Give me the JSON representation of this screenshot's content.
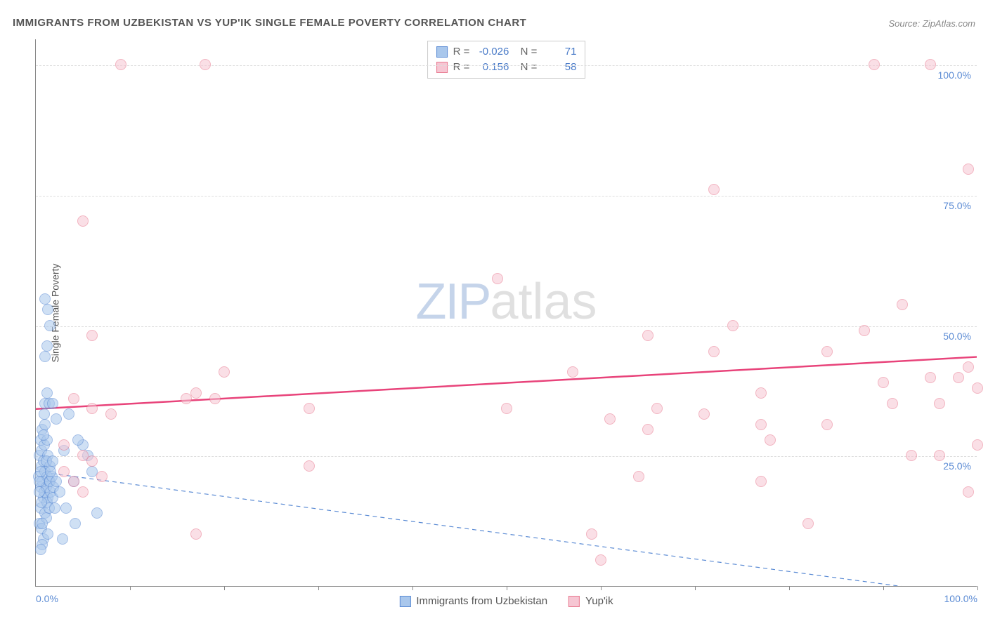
{
  "title": "IMMIGRANTS FROM UZBEKISTAN VS YUP'IK SINGLE FEMALE POVERTY CORRELATION CHART",
  "source_label": "Source: ZipAtlas.com",
  "ylabel": "Single Female Poverty",
  "watermark": {
    "part1": "ZIP",
    "part2": "atlas"
  },
  "chart": {
    "type": "scatter",
    "xlim": [
      0,
      100
    ],
    "ylim": [
      0,
      105
    ],
    "xticks_labels": [
      {
        "pos": 0,
        "label": "0.0%"
      },
      {
        "pos": 100,
        "label": "100.0%"
      }
    ],
    "xticks_minor": [
      10,
      20,
      30,
      40,
      50,
      60,
      70,
      80,
      90,
      100
    ],
    "yticks": [
      {
        "pos": 25,
        "label": "25.0%"
      },
      {
        "pos": 50,
        "label": "50.0%"
      },
      {
        "pos": 75,
        "label": "75.0%"
      },
      {
        "pos": 100,
        "label": "100.0%"
      }
    ],
    "background_color": "#ffffff",
    "grid_color": "#dddddd",
    "series": [
      {
        "name": "Immigrants from Uzbekistan",
        "fill": "#a9c7ec",
        "stroke": "#5b8bd4",
        "fill_opacity": 0.55,
        "r_value": "-0.026",
        "n_value": "71",
        "trend": {
          "x1": 0,
          "y1": 22,
          "x2": 100,
          "y2": -2,
          "dash": "6,5",
          "width": 1.2,
          "color": "#5b8bd4"
        },
        "points": [
          [
            0.3,
            21
          ],
          [
            0.5,
            19
          ],
          [
            0.6,
            23
          ],
          [
            0.8,
            17
          ],
          [
            0.4,
            25
          ],
          [
            0.7,
            20
          ],
          [
            1.0,
            22
          ],
          [
            0.5,
            15
          ],
          [
            0.9,
            18
          ],
          [
            1.2,
            21
          ],
          [
            0.6,
            26
          ],
          [
            1.1,
            19
          ],
          [
            0.4,
            12
          ],
          [
            0.8,
            24
          ],
          [
            1.3,
            17
          ],
          [
            0.5,
            28
          ],
          [
            1.0,
            14
          ],
          [
            1.4,
            20
          ],
          [
            0.7,
            30
          ],
          [
            1.2,
            16
          ],
          [
            0.6,
            11
          ],
          [
            1.5,
            23
          ],
          [
            0.9,
            27
          ],
          [
            1.1,
            13
          ],
          [
            0.4,
            20
          ],
          [
            1.3,
            25
          ],
          [
            0.8,
            9
          ],
          [
            1.6,
            18
          ],
          [
            1.0,
            31
          ],
          [
            1.4,
            15
          ],
          [
            0.5,
            22
          ],
          [
            1.2,
            28
          ],
          [
            0.7,
            12
          ],
          [
            1.5,
            20
          ],
          [
            0.9,
            33
          ],
          [
            1.8,
            17
          ],
          [
            1.1,
            24
          ],
          [
            0.6,
            16
          ],
          [
            1.7,
            21
          ],
          [
            0.8,
            29
          ],
          [
            1.3,
            10
          ],
          [
            1.9,
            19
          ],
          [
            1.0,
            35
          ],
          [
            0.4,
            18
          ],
          [
            1.6,
            22
          ],
          [
            2.0,
            15
          ],
          [
            1.2,
            37
          ],
          [
            0.7,
            8
          ],
          [
            2.2,
            20
          ],
          [
            1.4,
            35
          ],
          [
            0.5,
            7
          ],
          [
            1.8,
            24
          ],
          [
            2.5,
            18
          ],
          [
            3.0,
            26
          ],
          [
            4.0,
            20
          ],
          [
            5.0,
            27
          ],
          [
            3.5,
            33
          ],
          [
            6.0,
            22
          ],
          [
            4.5,
            28
          ],
          [
            1.0,
            44
          ],
          [
            1.2,
            46
          ],
          [
            1.5,
            50
          ],
          [
            1.3,
            53
          ],
          [
            1.0,
            55
          ],
          [
            1.8,
            35
          ],
          [
            2.2,
            32
          ],
          [
            5.5,
            25
          ],
          [
            4.2,
            12
          ],
          [
            3.2,
            15
          ],
          [
            2.8,
            9
          ],
          [
            6.5,
            14
          ]
        ]
      },
      {
        "name": "Yup'ik",
        "fill": "#f6c6d3",
        "stroke": "#e8788f",
        "fill_opacity": 0.55,
        "r_value": "0.156",
        "n_value": "58",
        "trend": {
          "x1": 0,
          "y1": 34,
          "x2": 100,
          "y2": 44,
          "dash": "none",
          "width": 2.5,
          "color": "#e8437a"
        },
        "points": [
          [
            3,
            27
          ],
          [
            4,
            36
          ],
          [
            9,
            100
          ],
          [
            6,
            34
          ],
          [
            5,
            25
          ],
          [
            8,
            33
          ],
          [
            6,
            48
          ],
          [
            5,
            70
          ],
          [
            18,
            100
          ],
          [
            19,
            36
          ],
          [
            20,
            41
          ],
          [
            17,
            37
          ],
          [
            17,
            10
          ],
          [
            16,
            36
          ],
          [
            29,
            23
          ],
          [
            29,
            34
          ],
          [
            49,
            59
          ],
          [
            50,
            34
          ],
          [
            57,
            41
          ],
          [
            59,
            10
          ],
          [
            61,
            32
          ],
          [
            60,
            5
          ],
          [
            64,
            21
          ],
          [
            65,
            30
          ],
          [
            66,
            34
          ],
          [
            65,
            48
          ],
          [
            71,
            33
          ],
          [
            72,
            45
          ],
          [
            72,
            76
          ],
          [
            74,
            50
          ],
          [
            77,
            31
          ],
          [
            77,
            37
          ],
          [
            78,
            28
          ],
          [
            77,
            20
          ],
          [
            82,
            12
          ],
          [
            84,
            45
          ],
          [
            84,
            31
          ],
          [
            88,
            49
          ],
          [
            89,
            100
          ],
          [
            90,
            39
          ],
          [
            92,
            54
          ],
          [
            91,
            35
          ],
          [
            93,
            25
          ],
          [
            95,
            100
          ],
          [
            95,
            40
          ],
          [
            96,
            35
          ],
          [
            96,
            25
          ],
          [
            98,
            40
          ],
          [
            99,
            42
          ],
          [
            99,
            80
          ],
          [
            100,
            38
          ],
          [
            100,
            27
          ],
          [
            99,
            18
          ],
          [
            3,
            22
          ],
          [
            4,
            20
          ],
          [
            5,
            18
          ],
          [
            6,
            24
          ],
          [
            7,
            21
          ]
        ]
      }
    ]
  },
  "bottom_legend": [
    {
      "label": "Immigrants from Uzbekistan",
      "fill": "#a9c7ec",
      "stroke": "#5b8bd4"
    },
    {
      "label": "Yup'ik",
      "fill": "#f6c6d3",
      "stroke": "#e8788f"
    }
  ]
}
